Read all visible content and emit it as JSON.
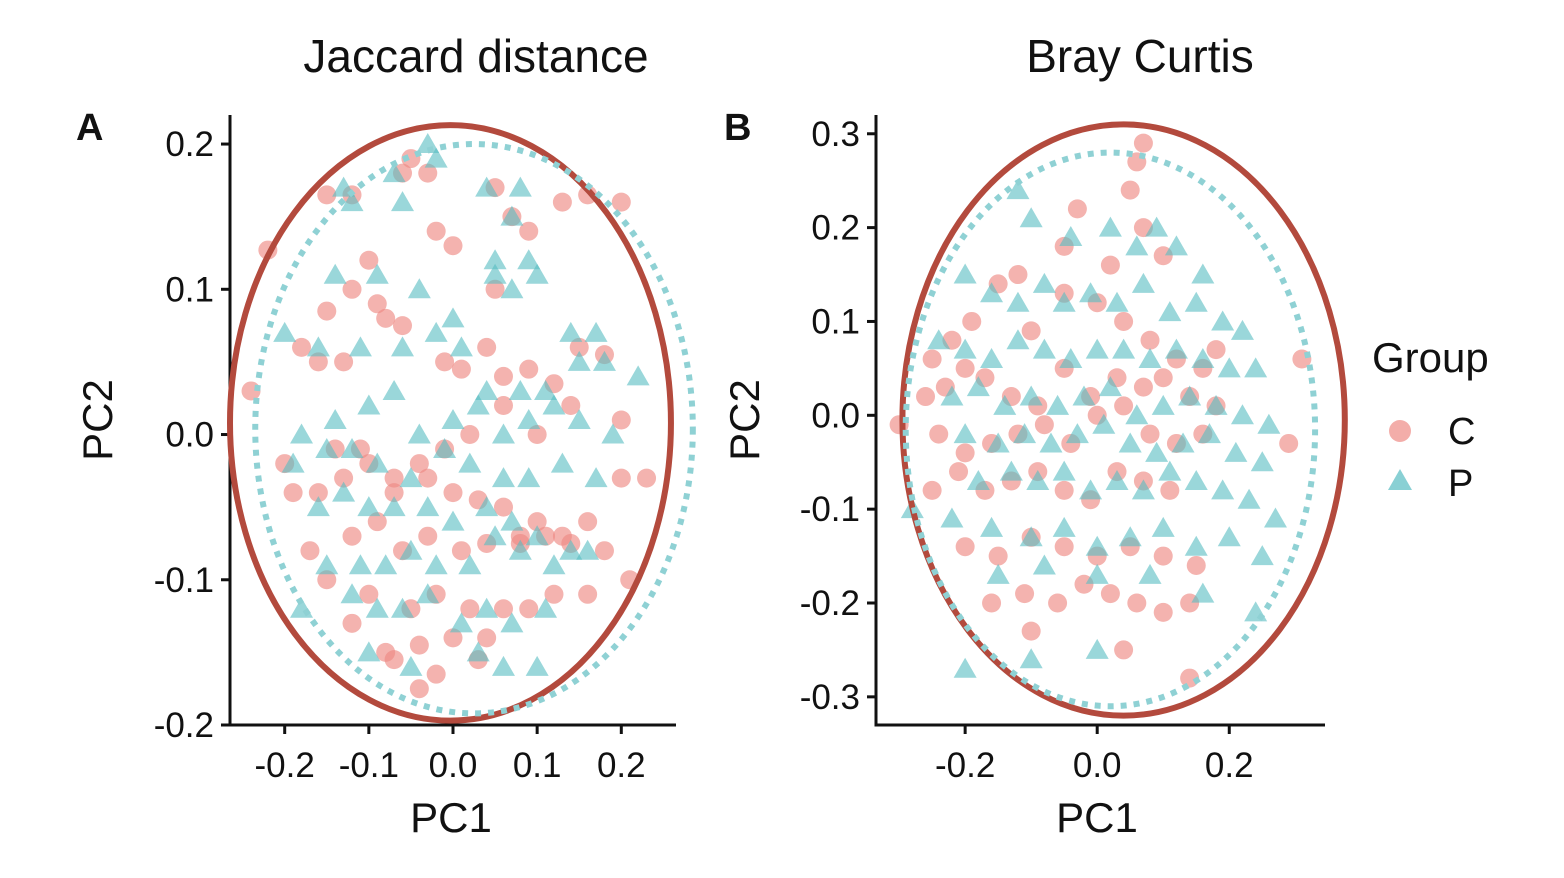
{
  "colors": {
    "C": "#ee8a84",
    "P": "#57bcc2",
    "ellipse_C": "#b34a3d",
    "ellipse_P": "#8fd1d4"
  },
  "legend": {
    "title": "Group",
    "items": [
      {
        "label": "C",
        "shape": "circle"
      },
      {
        "label": "P",
        "shape": "triangle"
      }
    ]
  },
  "chart_data": [
    {
      "type": "scatter",
      "letter": "A",
      "title": "Jaccard distance",
      "xlabel": "PC1",
      "ylabel": "PC2",
      "xlim": [
        -0.265,
        0.265
      ],
      "ylim": [
        -0.2,
        0.22
      ],
      "xticks": [
        {
          "v": -0.2,
          "label": "-0.2"
        },
        {
          "v": -0.1,
          "label": "-0.1"
        },
        {
          "v": 0.0,
          "label": "0.0"
        },
        {
          "v": 0.1,
          "label": "0.1"
        },
        {
          "v": 0.2,
          "label": "0.2"
        }
      ],
      "yticks": [
        {
          "v": 0.2,
          "label": "0.2"
        },
        {
          "v": 0.1,
          "label": "0.1"
        },
        {
          "v": 0.0,
          "label": "0.0"
        },
        {
          "v": -0.1,
          "label": "-0.1"
        },
        {
          "v": -0.2,
          "label": "-0.2"
        }
      ],
      "ellipses": [
        {
          "group": "C",
          "cx": -0.003,
          "cy": 0.008,
          "rx": 0.262,
          "ry": 0.205
        },
        {
          "group": "P",
          "cx": 0.025,
          "cy": 0.004,
          "rx": 0.26,
          "ry": 0.196
        }
      ],
      "series": [
        {
          "name": "C",
          "x": [
            -0.22,
            -0.24,
            -0.15,
            -0.12,
            -0.06,
            -0.05,
            -0.03,
            -0.1,
            -0.09,
            -0.02,
            0.0,
            0.05,
            0.07,
            0.09,
            0.13,
            0.16,
            0.2,
            0.05,
            -0.12,
            -0.15,
            -0.18,
            -0.16,
            -0.13,
            -0.08,
            -0.06,
            -0.01,
            0.01,
            0.04,
            0.06,
            0.09,
            0.12,
            0.15,
            0.18,
            -0.2,
            -0.14,
            -0.11,
            -0.07,
            -0.04,
            -0.01,
            0.02,
            0.06,
            0.1,
            0.14,
            0.2,
            0.23,
            -0.19,
            -0.16,
            -0.13,
            -0.1,
            -0.07,
            -0.03,
            0.0,
            0.03,
            0.06,
            0.08,
            0.1,
            0.13,
            0.16,
            0.2,
            -0.17,
            -0.12,
            -0.09,
            -0.06,
            -0.03,
            0.01,
            0.04,
            0.08,
            0.11,
            0.14,
            0.18,
            0.21,
            -0.15,
            -0.1,
            -0.05,
            -0.02,
            0.02,
            0.06,
            0.09,
            0.12,
            0.16,
            -0.12,
            -0.08,
            -0.04,
            0.0,
            0.04,
            -0.07,
            -0.02,
            0.03,
            -0.04
          ],
          "y": [
            0.127,
            0.03,
            0.165,
            0.165,
            0.18,
            0.19,
            0.18,
            0.12,
            0.09,
            0.14,
            0.13,
            0.17,
            0.15,
            0.14,
            0.16,
            0.165,
            0.16,
            0.1,
            0.1,
            0.085,
            0.06,
            0.05,
            0.05,
            0.08,
            0.075,
            0.05,
            0.045,
            0.06,
            0.04,
            0.045,
            0.035,
            0.06,
            0.055,
            -0.02,
            -0.01,
            -0.01,
            -0.03,
            -0.02,
            -0.01,
            0.0,
            0.02,
            0.0,
            0.02,
            0.01,
            -0.03,
            -0.04,
            -0.04,
            -0.03,
            -0.02,
            -0.04,
            -0.03,
            -0.04,
            -0.045,
            -0.05,
            -0.07,
            -0.06,
            -0.07,
            -0.06,
            -0.03,
            -0.08,
            -0.07,
            -0.06,
            -0.08,
            -0.07,
            -0.08,
            -0.075,
            -0.075,
            -0.07,
            -0.075,
            -0.08,
            -0.1,
            -0.1,
            -0.11,
            -0.12,
            -0.11,
            -0.12,
            -0.12,
            -0.12,
            -0.11,
            -0.11,
            -0.13,
            -0.15,
            -0.145,
            -0.14,
            -0.14,
            -0.155,
            -0.165,
            -0.155,
            -0.175
          ]
        },
        {
          "name": "P",
          "x": [
            -0.03,
            -0.02,
            -0.07,
            -0.13,
            -0.12,
            -0.06,
            0.04,
            0.07,
            0.08,
            0.05,
            0.09,
            -0.14,
            -0.09,
            -0.04,
            0.0,
            0.05,
            0.07,
            0.1,
            0.14,
            0.17,
            -0.2,
            -0.16,
            -0.11,
            -0.06,
            -0.02,
            0.01,
            0.04,
            0.08,
            0.11,
            0.15,
            0.18,
            0.22,
            -0.18,
            -0.14,
            -0.1,
            -0.07,
            -0.04,
            0.0,
            0.03,
            0.06,
            0.09,
            0.12,
            0.15,
            0.19,
            -0.19,
            -0.15,
            -0.12,
            -0.09,
            -0.05,
            -0.01,
            0.02,
            0.06,
            0.09,
            0.13,
            0.17,
            -0.16,
            -0.13,
            -0.1,
            -0.07,
            -0.03,
            0.0,
            0.04,
            0.07,
            0.1,
            0.14,
            -0.15,
            -0.11,
            -0.08,
            -0.05,
            -0.02,
            0.02,
            0.05,
            0.08,
            0.12,
            0.16,
            -0.12,
            -0.09,
            -0.06,
            -0.03,
            0.01,
            0.04,
            0.07,
            0.11,
            -0.18,
            -0.1,
            -0.05,
            0.03,
            0.06,
            0.1
          ],
          "y": [
            0.2,
            0.19,
            0.18,
            0.17,
            0.16,
            0.16,
            0.17,
            0.15,
            0.17,
            0.12,
            0.12,
            0.11,
            0.11,
            0.1,
            0.08,
            0.11,
            0.1,
            0.11,
            0.07,
            0.07,
            0.07,
            0.06,
            0.06,
            0.06,
            0.07,
            0.06,
            0.03,
            0.03,
            0.03,
            0.05,
            0.05,
            0.04,
            0.0,
            0.01,
            0.02,
            0.03,
            0.0,
            0.01,
            0.02,
            0.0,
            0.01,
            0.02,
            0.01,
            0.0,
            -0.02,
            -0.01,
            -0.01,
            -0.02,
            -0.03,
            -0.01,
            -0.02,
            -0.03,
            -0.03,
            -0.02,
            -0.03,
            -0.05,
            -0.04,
            -0.05,
            -0.05,
            -0.05,
            -0.06,
            -0.05,
            -0.06,
            -0.07,
            -0.08,
            -0.09,
            -0.09,
            -0.09,
            -0.08,
            -0.09,
            -0.09,
            -0.07,
            -0.08,
            -0.09,
            -0.08,
            -0.11,
            -0.12,
            -0.12,
            -0.11,
            -0.13,
            -0.12,
            -0.13,
            -0.12,
            -0.12,
            -0.15,
            -0.16,
            -0.15,
            -0.16,
            -0.16
          ]
        }
      ]
    },
    {
      "type": "scatter",
      "letter": "B",
      "title": "Bray Curtis",
      "xlabel": "PC1",
      "ylabel": "PC2",
      "xlim": [
        -0.335,
        0.345
      ],
      "ylim": [
        -0.33,
        0.32
      ],
      "xticks": [
        {
          "v": -0.2,
          "label": "-0.2"
        },
        {
          "v": 0.0,
          "label": "0.0"
        },
        {
          "v": 0.2,
          "label": "0.2"
        }
      ],
      "yticks": [
        {
          "v": 0.3,
          "label": "0.3"
        },
        {
          "v": 0.2,
          "label": "0.2"
        },
        {
          "v": 0.1,
          "label": "0.1"
        },
        {
          "v": 0.0,
          "label": "0.0"
        },
        {
          "v": -0.1,
          "label": "-0.1"
        },
        {
          "v": -0.2,
          "label": "-0.2"
        },
        {
          "v": -0.3,
          "label": "-0.3"
        }
      ],
      "ellipses": [
        {
          "group": "C",
          "cx": 0.04,
          "cy": -0.005,
          "rx": 0.335,
          "ry": 0.315
        },
        {
          "group": "P",
          "cx": 0.02,
          "cy": -0.015,
          "rx": 0.31,
          "ry": 0.295
        }
      ],
      "series": [
        {
          "name": "C",
          "x": [
            0.07,
            0.06,
            0.05,
            -0.03,
            0.07,
            -0.05,
            0.02,
            0.1,
            -0.12,
            -0.15,
            -0.19,
            -0.22,
            -0.25,
            -0.1,
            -0.05,
            0.0,
            0.04,
            0.08,
            0.12,
            0.16,
            0.18,
            -0.3,
            -0.26,
            -0.23,
            -0.2,
            -0.17,
            -0.13,
            -0.09,
            -0.05,
            -0.01,
            0.03,
            0.07,
            0.1,
            0.14,
            0.18,
            0.31,
            0.29,
            -0.24,
            -0.2,
            -0.16,
            -0.12,
            -0.08,
            -0.04,
            0.0,
            0.04,
            0.08,
            0.12,
            0.16,
            -0.25,
            -0.21,
            -0.17,
            -0.13,
            -0.09,
            -0.05,
            -0.01,
            0.03,
            0.07,
            0.11,
            -0.2,
            -0.15,
            -0.1,
            -0.05,
            0.0,
            0.05,
            0.1,
            0.15,
            -0.16,
            -0.11,
            -0.06,
            -0.02,
            0.02,
            0.06,
            0.1,
            0.14,
            -0.1,
            0.04,
            0.14
          ],
          "y": [
            0.29,
            0.27,
            0.24,
            0.22,
            0.2,
            0.18,
            0.16,
            0.17,
            0.15,
            0.14,
            0.1,
            0.08,
            0.06,
            0.09,
            0.13,
            0.12,
            0.1,
            0.08,
            0.06,
            0.05,
            0.07,
            -0.01,
            0.02,
            0.03,
            0.05,
            0.04,
            0.02,
            0.01,
            0.05,
            0.02,
            0.04,
            0.03,
            0.04,
            0.02,
            0.01,
            0.06,
            -0.03,
            -0.02,
            -0.04,
            -0.03,
            -0.02,
            -0.01,
            -0.03,
            0.0,
            0.01,
            -0.02,
            -0.03,
            -0.02,
            -0.08,
            -0.06,
            -0.08,
            -0.07,
            -0.06,
            -0.08,
            -0.09,
            -0.06,
            -0.07,
            -0.08,
            -0.14,
            -0.15,
            -0.13,
            -0.14,
            -0.15,
            -0.14,
            -0.15,
            -0.16,
            -0.2,
            -0.19,
            -0.2,
            -0.18,
            -0.19,
            -0.2,
            -0.21,
            -0.2,
            -0.23,
            -0.25,
            -0.28
          ],
          "size": 1
        },
        {
          "name": "P",
          "x": [
            -0.12,
            -0.1,
            -0.04,
            0.02,
            0.06,
            0.09,
            0.12,
            0.16,
            -0.2,
            -0.16,
            -0.12,
            -0.08,
            -0.05,
            -0.01,
            0.03,
            0.07,
            0.11,
            0.15,
            0.19,
            0.22,
            -0.24,
            -0.2,
            -0.16,
            -0.12,
            -0.08,
            -0.04,
            0.0,
            0.04,
            0.08,
            0.12,
            0.16,
            0.2,
            0.24,
            -0.22,
            -0.18,
            -0.14,
            -0.1,
            -0.06,
            -0.02,
            0.02,
            0.06,
            0.1,
            0.14,
            0.18,
            0.22,
            0.26,
            -0.2,
            -0.15,
            -0.11,
            -0.07,
            -0.03,
            0.01,
            0.05,
            0.09,
            0.13,
            0.17,
            0.21,
            0.25,
            -0.18,
            -0.13,
            -0.09,
            -0.05,
            -0.01,
            0.03,
            0.07,
            0.11,
            0.15,
            0.19,
            0.23,
            0.27,
            -0.28,
            -0.22,
            -0.16,
            -0.1,
            -0.05,
            0.0,
            0.05,
            0.1,
            0.15,
            0.2,
            0.25,
            -0.15,
            -0.08,
            0.0,
            0.08,
            0.16,
            0.24,
            -0.2,
            -0.1,
            0.0
          ],
          "y": [
            0.24,
            0.21,
            0.19,
            0.2,
            0.18,
            0.2,
            0.18,
            0.15,
            0.15,
            0.13,
            0.12,
            0.14,
            0.12,
            0.13,
            0.12,
            0.14,
            0.11,
            0.12,
            0.1,
            0.09,
            0.08,
            0.07,
            0.06,
            0.08,
            0.07,
            0.06,
            0.07,
            0.07,
            0.06,
            0.07,
            0.06,
            0.05,
            0.05,
            0.02,
            0.03,
            0.01,
            0.02,
            0.01,
            0.02,
            0.03,
            0.0,
            0.01,
            0.02,
            0.01,
            0.0,
            -0.01,
            -0.02,
            -0.03,
            -0.02,
            -0.03,
            -0.02,
            -0.01,
            -0.03,
            -0.04,
            -0.03,
            -0.02,
            -0.04,
            -0.05,
            -0.07,
            -0.06,
            -0.07,
            -0.06,
            -0.08,
            -0.07,
            -0.08,
            -0.06,
            -0.07,
            -0.08,
            -0.09,
            -0.11,
            -0.1,
            -0.11,
            -0.12,
            -0.13,
            -0.12,
            -0.14,
            -0.13,
            -0.12,
            -0.14,
            -0.13,
            -0.15,
            -0.17,
            -0.16,
            -0.17,
            -0.17,
            -0.19,
            -0.21,
            -0.27,
            -0.26,
            -0.25
          ]
        }
      ]
    }
  ]
}
